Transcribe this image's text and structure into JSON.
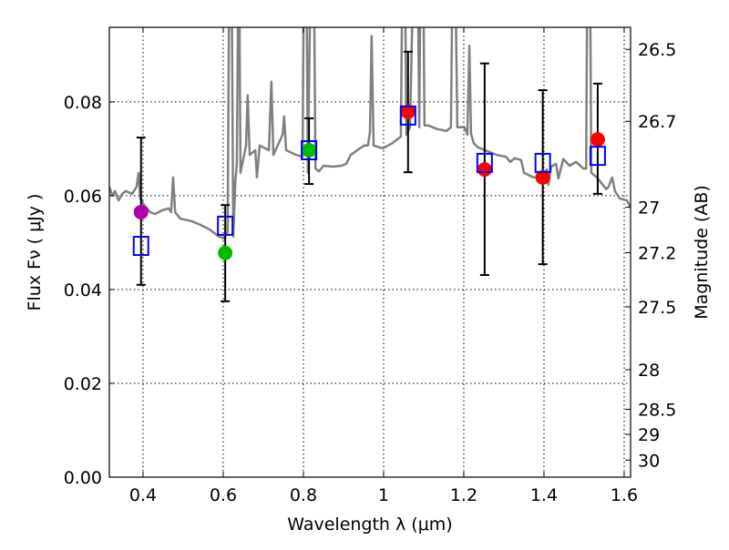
{
  "chart_data": {
    "type": "scatter",
    "title": "",
    "xlabel": "Wavelength  λ (μm)",
    "ylabel": "Flux  Fν  ( μJy )",
    "ylabel_right": "Magnitude (AB)",
    "xlim": [
      0.316,
      1.616
    ],
    "ylim": [
      0,
      0.0959
    ],
    "grid": true,
    "x_ticks": [
      0.4,
      0.6,
      0.8,
      1.0,
      1.2,
      1.4,
      1.6
    ],
    "x_tick_labels": [
      "0.4",
      "0.6",
      "0.8",
      "1",
      "1.2",
      "1.4",
      "1.6"
    ],
    "y_ticks": [
      0.0,
      0.02,
      0.04,
      0.06,
      0.08
    ],
    "y_tick_labels": [
      "0.00",
      "0.02",
      "0.04",
      "0.06",
      "0.08"
    ],
    "right_ticks": [
      26.5,
      26.7,
      27,
      27.2,
      27.5,
      28,
      28.5,
      29,
      30
    ],
    "right_tick_labels": [
      "26.5",
      "26.7",
      "27",
      "27.2",
      "27.5",
      "28",
      "28.5",
      "29",
      "30"
    ],
    "colors": {
      "spectrum": "#808080",
      "observed": "#0000ff",
      "errorbar": "#000000",
      "grid": "#000000"
    },
    "spectrum": [
      [
        0.316,
        0.0619
      ],
      [
        0.323,
        0.06
      ],
      [
        0.33,
        0.061
      ],
      [
        0.339,
        0.059
      ],
      [
        0.348,
        0.0604
      ],
      [
        0.357,
        0.061
      ],
      [
        0.373,
        0.0604
      ],
      [
        0.384,
        0.0619
      ],
      [
        0.389,
        0.0649
      ],
      [
        0.393,
        0.0594
      ],
      [
        0.402,
        0.0581
      ],
      [
        0.418,
        0.0565
      ],
      [
        0.43,
        0.0561
      ],
      [
        0.448,
        0.0569
      ],
      [
        0.464,
        0.0573
      ],
      [
        0.47,
        0.0565
      ],
      [
        0.475,
        0.0639
      ],
      [
        0.48,
        0.0565
      ],
      [
        0.493,
        0.0551
      ],
      [
        0.52,
        0.0546
      ],
      [
        0.543,
        0.0538
      ],
      [
        0.566,
        0.0528
      ],
      [
        0.589,
        0.0513
      ],
      [
        0.602,
        0.0509
      ],
      [
        0.611,
        0.0522
      ],
      [
        0.616,
        0.12
      ],
      [
        0.62,
        0.12
      ],
      [
        0.625,
        0.0513
      ],
      [
        0.63,
        0.0629
      ],
      [
        0.634,
        0.0668
      ],
      [
        0.639,
        0.12
      ],
      [
        0.643,
        0.0649
      ],
      [
        0.657,
        0.0707
      ],
      [
        0.661,
        0.0814
      ],
      [
        0.666,
        0.0687
      ],
      [
        0.68,
        0.0697
      ],
      [
        0.684,
        0.0639
      ],
      [
        0.691,
        0.0707
      ],
      [
        0.714,
        0.0697
      ],
      [
        0.72,
        0.0843
      ],
      [
        0.725,
        0.0687
      ],
      [
        0.748,
        0.073
      ],
      [
        0.752,
        0.0769
      ],
      [
        0.757,
        0.0697
      ],
      [
        0.782,
        0.0687
      ],
      [
        0.798,
        0.0683
      ],
      [
        0.802,
        0.12
      ],
      [
        0.807,
        0.12
      ],
      [
        0.811,
        0.0649
      ],
      [
        0.82,
        0.12
      ],
      [
        0.825,
        0.12
      ],
      [
        0.83,
        0.0658
      ],
      [
        0.839,
        0.0652
      ],
      [
        0.85,
        0.0664
      ],
      [
        0.873,
        0.0662
      ],
      [
        0.895,
        0.0664
      ],
      [
        0.907,
        0.0668
      ],
      [
        0.918,
        0.0687
      ],
      [
        0.941,
        0.0701
      ],
      [
        0.952,
        0.0707
      ],
      [
        0.961,
        0.0707
      ],
      [
        0.966,
        0.0736
      ],
      [
        0.97,
        0.094
      ],
      [
        0.975,
        0.0707
      ],
      [
        0.998,
        0.0701
      ],
      [
        1.02,
        0.0711
      ],
      [
        1.043,
        0.0726
      ],
      [
        1.048,
        0.12
      ],
      [
        1.052,
        0.12
      ],
      [
        1.057,
        0.073
      ],
      [
        1.066,
        0.0746
      ],
      [
        1.077,
        0.12
      ],
      [
        1.084,
        0.12
      ],
      [
        1.089,
        0.0746
      ],
      [
        1.093,
        0.12
      ],
      [
        1.098,
        0.12
      ],
      [
        1.102,
        0.075
      ],
      [
        1.111,
        0.075
      ],
      [
        1.134,
        0.0742
      ],
      [
        1.157,
        0.0738
      ],
      [
        1.168,
        0.0746
      ],
      [
        1.173,
        0.12
      ],
      [
        1.177,
        0.12
      ],
      [
        1.184,
        0.0746
      ],
      [
        1.202,
        0.0746
      ],
      [
        1.209,
        0.073
      ],
      [
        1.214,
        0.092
      ],
      [
        1.218,
        0.0732
      ],
      [
        1.225,
        0.0711
      ],
      [
        1.236,
        0.0703
      ],
      [
        1.259,
        0.0695
      ],
      [
        1.282,
        0.0687
      ],
      [
        1.305,
        0.0683
      ],
      [
        1.316,
        0.0672
      ],
      [
        1.327,
        0.068
      ],
      [
        1.343,
        0.0676
      ],
      [
        1.35,
        0.0649
      ],
      [
        1.373,
        0.0639
      ],
      [
        1.395,
        0.0639
      ],
      [
        1.407,
        0.0656
      ],
      [
        1.411,
        0.0623
      ],
      [
        1.418,
        0.0662
      ],
      [
        1.43,
        0.0668
      ],
      [
        1.436,
        0.0637
      ],
      [
        1.448,
        0.0678
      ],
      [
        1.464,
        0.0664
      ],
      [
        1.48,
        0.0672
      ],
      [
        1.498,
        0.0658
      ],
      [
        1.505,
        0.0658
      ],
      [
        1.509,
        0.12
      ],
      [
        1.514,
        0.12
      ],
      [
        1.518,
        0.0649
      ],
      [
        1.532,
        0.0639
      ],
      [
        1.555,
        0.0614
      ],
      [
        1.561,
        0.0619
      ],
      [
        1.57,
        0.0639
      ],
      [
        1.577,
        0.061
      ],
      [
        1.589,
        0.0594
      ],
      [
        1.607,
        0.059
      ],
      [
        1.616,
        0.0575
      ]
    ],
    "observed": [
      {
        "x": 0.395,
        "y": 0.0493,
        "err_low": 0.041,
        "err_high": 0.0724
      },
      {
        "x": 0.605,
        "y": 0.0536,
        "err_low": 0.0375,
        "err_high": 0.058
      },
      {
        "x": 0.814,
        "y": 0.0697,
        "err_low": 0.0625,
        "err_high": 0.0765
      },
      {
        "x": 1.061,
        "y": 0.0771,
        "err_low": 0.065,
        "err_high": 0.0907
      },
      {
        "x": 1.252,
        "y": 0.067,
        "err_low": 0.0431,
        "err_high": 0.0882
      },
      {
        "x": 1.397,
        "y": 0.067,
        "err_low": 0.0454,
        "err_high": 0.0825
      },
      {
        "x": 1.534,
        "y": 0.0685,
        "err_low": 0.0604,
        "err_high": 0.0839
      }
    ],
    "model_points": [
      {
        "x": 0.395,
        "y": 0.0565,
        "color": "#aa00aa"
      },
      {
        "x": 0.605,
        "y": 0.0478,
        "color": "#00bb00"
      },
      {
        "x": 0.814,
        "y": 0.0697,
        "color": "#00bb00"
      },
      {
        "x": 1.061,
        "y": 0.0779,
        "color": "#ff0000"
      },
      {
        "x": 1.252,
        "y": 0.0656,
        "color": "#ff0000"
      },
      {
        "x": 1.397,
        "y": 0.0639,
        "color": "#ff0000"
      },
      {
        "x": 1.534,
        "y": 0.072,
        "color": "#ff0000"
      }
    ]
  }
}
